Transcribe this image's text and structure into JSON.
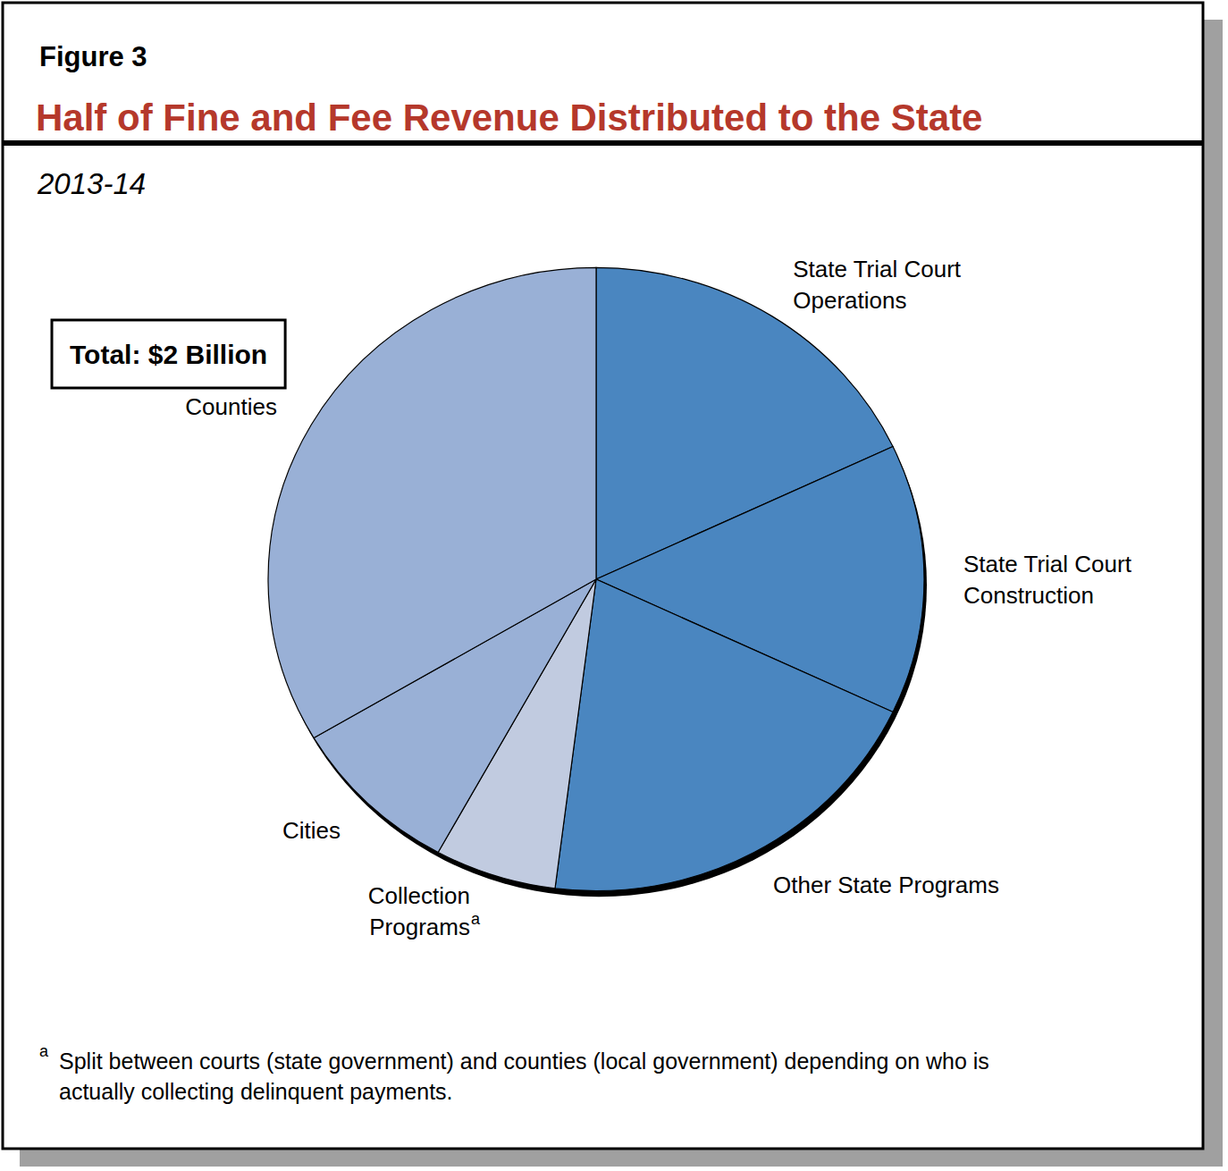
{
  "chart_data": {
    "type": "pie",
    "figure_label": "Figure 3",
    "title": "Half of Fine and Fee Revenue Distributed to the State",
    "subtitle": "2013-14",
    "annotation": "Total: $2 Billion",
    "categories": [
      "State Trial Court Operations",
      "State Trial Court Construction",
      "Other State Programs",
      "Collection Programs",
      "Cities",
      "Counties"
    ],
    "values": [
      18,
      14,
      20,
      6,
      8.5,
      33.5
    ],
    "colors": [
      "#4a86c0",
      "#4a86c0",
      "#4a86c0",
      "#c1cbe0",
      "#99b0d6",
      "#99b0d6"
    ],
    "footnote": {
      "marker": "a",
      "text": "Split between courts (state government) and counties (local government) depending on who is actually collecting delinquent payments."
    }
  }
}
